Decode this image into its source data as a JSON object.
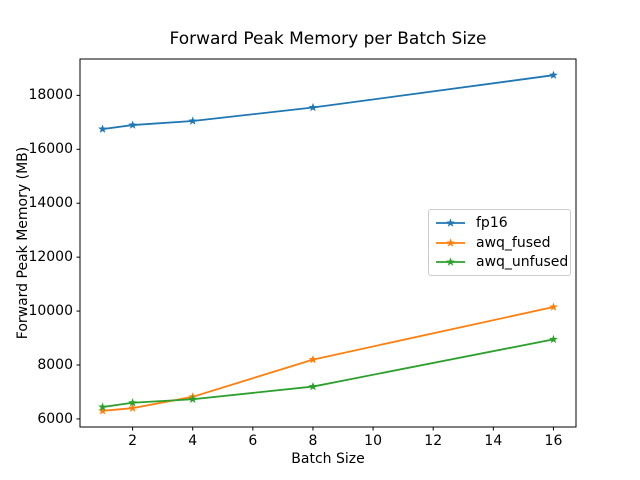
{
  "chart_data": {
    "type": "line",
    "title": "Forward Peak Memory per Batch Size",
    "xlabel": "Batch Size",
    "ylabel": "Forward Peak Memory (MB)",
    "x": [
      1,
      2,
      4,
      8,
      16
    ],
    "series": [
      {
        "name": "fp16",
        "color": "#1f77b4",
        "values": [
          16750,
          16900,
          17050,
          17550,
          18750
        ]
      },
      {
        "name": "awq_fused",
        "color": "#ff7f0e",
        "values": [
          6300,
          6400,
          6820,
          8200,
          10150
        ]
      },
      {
        "name": "awq_unfused",
        "color": "#2ca02c",
        "values": [
          6440,
          6600,
          6730,
          7200,
          8950
        ]
      }
    ],
    "xticks": [
      2,
      4,
      6,
      8,
      10,
      12,
      14,
      16
    ],
    "yticks": [
      6000,
      8000,
      10000,
      12000,
      14000,
      16000,
      18000
    ],
    "xlim": [
      0.25,
      16.75
    ],
    "ylim": [
      5700,
      19350
    ],
    "marker": "star",
    "grid": false,
    "legend_position": "center-right",
    "axis_color": "#000000",
    "background_color": "#ffffff"
  }
}
